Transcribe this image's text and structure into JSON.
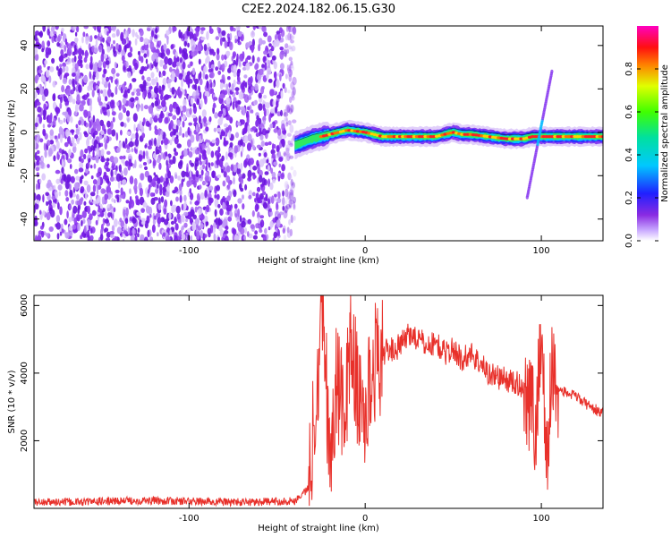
{
  "title": "C2E2.2024.182.06.15.G30",
  "chart_data": [
    {
      "type": "heatmap",
      "xlabel": "Height of straight line (km)",
      "ylabel": "Frequency (Hz)",
      "xlim": [
        -188,
        135
      ],
      "ylim": [
        -50,
        49
      ],
      "xticks": [
        -100,
        0,
        100
      ],
      "yticks": [
        -40,
        -20,
        0,
        20,
        40
      ],
      "colorbar": {
        "label": "Normalized spectral amplitude",
        "range": [
          0,
          1
        ],
        "ticks": [
          "0.0",
          "0.2",
          "0.4",
          "0.6",
          "0.8"
        ],
        "colormap": "hsv-rainbow (white → purple → blue → cyan → green → yellow → red → magenta)"
      },
      "noise_region": {
        "x_range": [
          -188,
          -40
        ],
        "description": "scattered low-amplitude purple speckle across all frequencies"
      },
      "signal_ridge": [
        {
          "x": -40,
          "y": -6
        },
        {
          "x": -30,
          "y": -3
        },
        {
          "x": -20,
          "y": -1
        },
        {
          "x": -10,
          "y": 1
        },
        {
          "x": 0,
          "y": 0
        },
        {
          "x": 10,
          "y": -2
        },
        {
          "x": 20,
          "y": -2
        },
        {
          "x": 30,
          "y": -2
        },
        {
          "x": 40,
          "y": -2
        },
        {
          "x": 45,
          "y": -1
        },
        {
          "x": 50,
          "y": 0
        },
        {
          "x": 55,
          "y": -1
        },
        {
          "x": 60,
          "y": -1
        },
        {
          "x": 70,
          "y": -2
        },
        {
          "x": 80,
          "y": -3
        },
        {
          "x": 90,
          "y": -3
        },
        {
          "x": 95,
          "y": -2
        },
        {
          "x": 100,
          "y": -2
        },
        {
          "x": 110,
          "y": -2
        },
        {
          "x": 120,
          "y": -2
        },
        {
          "x": 135,
          "y": -2
        }
      ],
      "diagonal_feature": {
        "x_range": [
          92,
          106
        ],
        "y_range": [
          -30,
          28
        ]
      }
    },
    {
      "type": "line",
      "xlabel": "Height of straight line (km)",
      "ylabel": "SNR (10 * v/v)",
      "xlim": [
        -188,
        135
      ],
      "ylim": [
        0,
        6300
      ],
      "xticks": [
        -100,
        0,
        100
      ],
      "yticks": [
        2000,
        4000,
        6000
      ],
      "color": "#e8302a",
      "series": [
        {
          "x": [
            -188,
            -160,
            -130,
            -100,
            -70,
            -40,
            -32,
            -28,
            -24,
            -20,
            -16,
            -12,
            -8,
            -4,
            0,
            5,
            10,
            15,
            20,
            25,
            30,
            35,
            40,
            45,
            50,
            55,
            60,
            65,
            70,
            75,
            80,
            85,
            90,
            94,
            97,
            100,
            103,
            106,
            110,
            115,
            120,
            125,
            130,
            135
          ],
          "y": [
            180,
            190,
            230,
            210,
            180,
            220,
            600,
            3500,
            6200,
            1200,
            4000,
            2500,
            5200,
            3200,
            2800,
            4300,
            4600,
            4700,
            4800,
            5200,
            5000,
            4800,
            4900,
            4600,
            4700,
            4400,
            4600,
            4300,
            4000,
            3900,
            3800,
            3700,
            3600,
            3200,
            2200,
            5600,
            1100,
            4200,
            3500,
            3400,
            3300,
            3100,
            2950,
            2800
          ]
        }
      ]
    }
  ]
}
